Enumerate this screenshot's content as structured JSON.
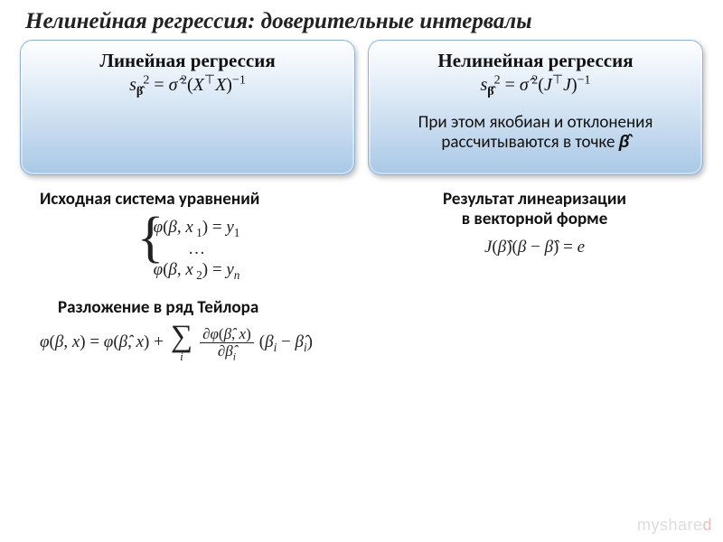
{
  "title": "Нелинейная регрессия: доверительные интервалы",
  "panels": {
    "left": {
      "title": "Линейная регрессия",
      "formula_html": "<span class='it'>s</span><sub><b>β̂</b></sub><sup>2</sup> = <span class='it'>σ̂</span><sup> 2</sup>(<span class='it'>X</span><sup>⊤</sup><span class='it'>X</span>)<sup>−1</sup>"
    },
    "right": {
      "title": "Нелинейная регрессия",
      "formula_html": "<span class='it'>s</span><sub><b>β̂</b></sub><sup>2</sup> = <span class='it'>σ̂</span><sup> 2</sup>(<span class='it'>J</span><sup>⊤</sup><span class='it'>J</span>)<sup>−1</sup>",
      "note_html": "При этом якобиан и отклонения<br>рассчитываются в точке <b><i>β̂</i></b>"
    }
  },
  "sections": {
    "system_title": "Исходная система уравнений",
    "system_rows": [
      "<span class='it'>φ</span>(<span class='it'>β</span>, <span class='it'>x</span><sub> 1</sub>) = <span class='it'>y</span><sub>1</sub>",
      "…",
      "<span class='it'>φ</span>(<span class='it'>β</span>, <span class='it'>x</span><sub> 2</sub>) = <span class='it'>y</span><sub><span class='it'>n</span></sub>"
    ],
    "linearization_title": "Результат линеаризации<br>в векторной форме",
    "linearization_eq_html": "<span class='it'>J</span>(<span class='it'>β̂</span>)(<span class='it'>β</span> − <span class='it'>β̂</span>) = <span class='it'>e</span>",
    "taylor_title": "Разложение в ряд Тейлора",
    "taylor_lhs_html": "<span class='it'>φ</span>(<span class='it'>β</span>, <span class='it'>x</span>) = <span class='it'>φ</span>(<span class='it'>β̂</span>, <span class='it'>x</span>) +",
    "taylor_frac_num": "∂<span class='it'>φ</span>(<span class='it'>β̂</span>, <span class='it'>x</span>)",
    "taylor_frac_den": "∂<span class='it'>β̂</span><sub><span class='it'>i</span></sub>",
    "taylor_tail_html": "(<span class='it'>β</span><sub><span class='it'>i</span></sub> − <span class='it'>β̂</span><sub><span class='it'>i</span></sub>)",
    "sum_sub": "i"
  },
  "watermark": {
    "pre": "myshare",
    "red": "d"
  }
}
